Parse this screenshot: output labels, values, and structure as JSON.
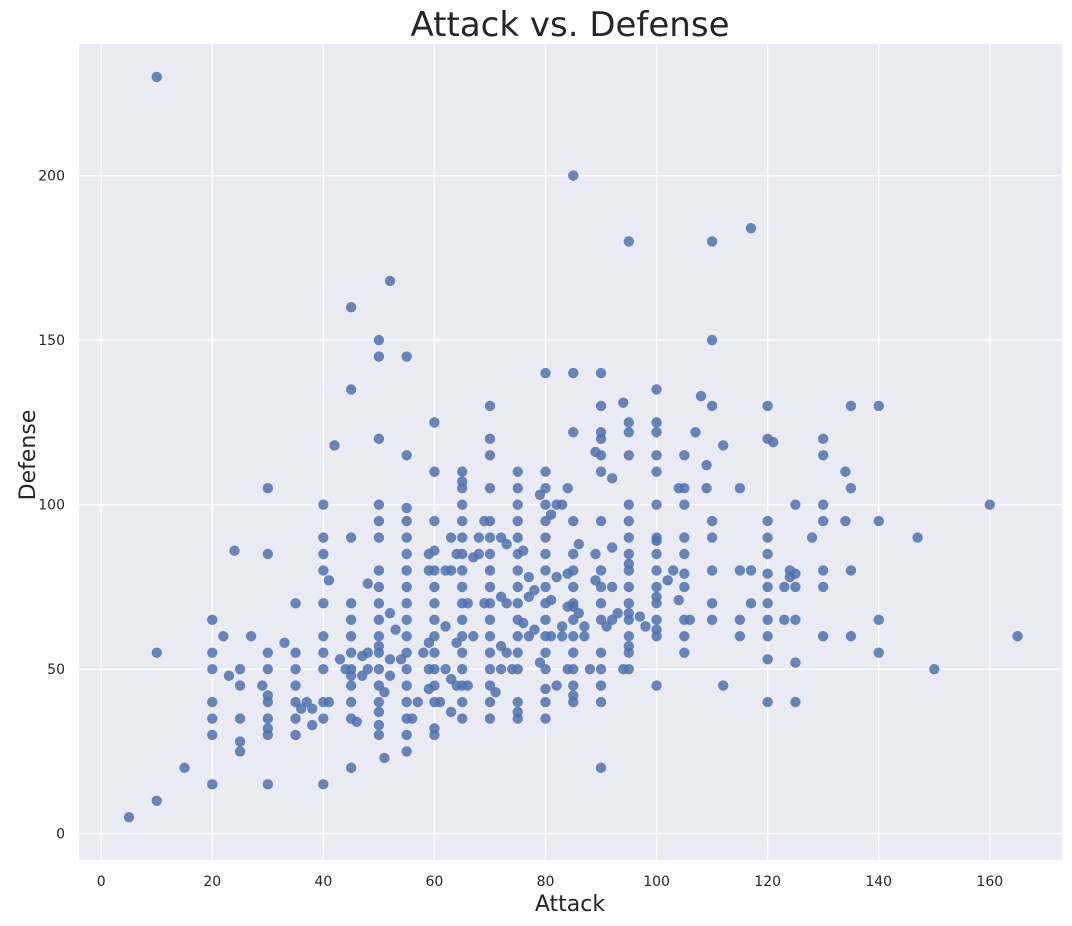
{
  "chart_data": {
    "type": "scatter",
    "title": "Attack vs. Defense",
    "xlabel": "Attack",
    "ylabel": "Defense",
    "xlim": [
      -4,
      173
    ],
    "ylim": [
      -8,
      240
    ],
    "xticks": [
      0,
      20,
      40,
      60,
      80,
      100,
      120,
      140,
      160
    ],
    "yticks": [
      0,
      50,
      100,
      150,
      200
    ],
    "grid": true,
    "point_color": "#4c72b0",
    "background_color": "#eaeaf2",
    "points": [
      [
        5,
        5
      ],
      [
        10,
        10
      ],
      [
        10,
        55
      ],
      [
        10,
        230
      ],
      [
        15,
        20
      ],
      [
        20,
        15
      ],
      [
        20,
        30
      ],
      [
        20,
        35
      ],
      [
        20,
        40
      ],
      [
        20,
        50
      ],
      [
        20,
        55
      ],
      [
        20,
        65
      ],
      [
        22,
        60
      ],
      [
        23,
        48
      ],
      [
        24,
        86
      ],
      [
        25,
        25
      ],
      [
        25,
        28
      ],
      [
        25,
        35
      ],
      [
        25,
        45
      ],
      [
        25,
        50
      ],
      [
        27,
        60
      ],
      [
        29,
        45
      ],
      [
        30,
        15
      ],
      [
        30,
        30
      ],
      [
        30,
        32
      ],
      [
        30,
        35
      ],
      [
        30,
        40
      ],
      [
        30,
        42
      ],
      [
        30,
        50
      ],
      [
        30,
        55
      ],
      [
        30,
        85
      ],
      [
        30,
        105
      ],
      [
        33,
        58
      ],
      [
        35,
        30
      ],
      [
        35,
        35
      ],
      [
        35,
        40
      ],
      [
        35,
        45
      ],
      [
        35,
        50
      ],
      [
        35,
        55
      ],
      [
        35,
        70
      ],
      [
        36,
        38
      ],
      [
        37,
        40
      ],
      [
        38,
        33
      ],
      [
        38,
        38
      ],
      [
        40,
        15
      ],
      [
        40,
        35
      ],
      [
        40,
        40
      ],
      [
        40,
        50
      ],
      [
        40,
        55
      ],
      [
        40,
        60
      ],
      [
        40,
        70
      ],
      [
        40,
        80
      ],
      [
        40,
        85
      ],
      [
        40,
        90
      ],
      [
        40,
        100
      ],
      [
        41,
        40
      ],
      [
        41,
        77
      ],
      [
        42,
        118
      ],
      [
        43,
        53
      ],
      [
        44,
        50
      ],
      [
        45,
        20
      ],
      [
        45,
        35
      ],
      [
        45,
        40
      ],
      [
        45,
        45
      ],
      [
        45,
        48
      ],
      [
        45,
        50
      ],
      [
        45,
        55
      ],
      [
        45,
        60
      ],
      [
        45,
        65
      ],
      [
        45,
        70
      ],
      [
        45,
        90
      ],
      [
        45,
        135
      ],
      [
        45,
        160
      ],
      [
        46,
        34
      ],
      [
        47,
        48
      ],
      [
        47,
        54
      ],
      [
        48,
        50
      ],
      [
        48,
        55
      ],
      [
        48,
        76
      ],
      [
        50,
        30
      ],
      [
        50,
        33
      ],
      [
        50,
        37
      ],
      [
        50,
        40
      ],
      [
        50,
        45
      ],
      [
        50,
        50
      ],
      [
        50,
        55
      ],
      [
        50,
        57
      ],
      [
        50,
        60
      ],
      [
        50,
        65
      ],
      [
        50,
        70
      ],
      [
        50,
        75
      ],
      [
        50,
        80
      ],
      [
        50,
        90
      ],
      [
        50,
        95
      ],
      [
        50,
        100
      ],
      [
        50,
        120
      ],
      [
        50,
        145
      ],
      [
        50,
        150
      ],
      [
        51,
        23
      ],
      [
        51,
        43
      ],
      [
        52,
        48
      ],
      [
        52,
        53
      ],
      [
        52,
        67
      ],
      [
        52,
        168
      ],
      [
        53,
        62
      ],
      [
        54,
        53
      ],
      [
        55,
        25
      ],
      [
        55,
        30
      ],
      [
        55,
        35
      ],
      [
        55,
        40
      ],
      [
        55,
        45
      ],
      [
        55,
        50
      ],
      [
        55,
        55
      ],
      [
        55,
        60
      ],
      [
        55,
        65
      ],
      [
        55,
        70
      ],
      [
        55,
        75
      ],
      [
        55,
        80
      ],
      [
        55,
        85
      ],
      [
        55,
        90
      ],
      [
        55,
        95
      ],
      [
        55,
        99
      ],
      [
        55,
        115
      ],
      [
        55,
        145
      ],
      [
        56,
        35
      ],
      [
        57,
        40
      ],
      [
        58,
        55
      ],
      [
        59,
        44
      ],
      [
        59,
        50
      ],
      [
        59,
        58
      ],
      [
        59,
        80
      ],
      [
        59,
        85
      ],
      [
        60,
        30
      ],
      [
        60,
        32
      ],
      [
        60,
        40
      ],
      [
        60,
        45
      ],
      [
        60,
        50
      ],
      [
        60,
        55
      ],
      [
        60,
        60
      ],
      [
        60,
        65
      ],
      [
        60,
        70
      ],
      [
        60,
        75
      ],
      [
        60,
        80
      ],
      [
        60,
        86
      ],
      [
        60,
        95
      ],
      [
        60,
        110
      ],
      [
        60,
        125
      ],
      [
        61,
        40
      ],
      [
        62,
        50
      ],
      [
        62,
        63
      ],
      [
        62,
        80
      ],
      [
        63,
        37
      ],
      [
        63,
        47
      ],
      [
        63,
        80
      ],
      [
        63,
        90
      ],
      [
        64,
        45
      ],
      [
        64,
        58
      ],
      [
        64,
        85
      ],
      [
        65,
        35
      ],
      [
        65,
        40
      ],
      [
        65,
        45
      ],
      [
        65,
        50
      ],
      [
        65,
        55
      ],
      [
        65,
        60
      ],
      [
        65,
        65
      ],
      [
        65,
        70
      ],
      [
        65,
        75
      ],
      [
        65,
        80
      ],
      [
        65,
        85
      ],
      [
        65,
        90
      ],
      [
        65,
        95
      ],
      [
        65,
        100
      ],
      [
        65,
        105
      ],
      [
        65,
        107
      ],
      [
        65,
        110
      ],
      [
        66,
        45
      ],
      [
        66,
        70
      ],
      [
        67,
        60
      ],
      [
        67,
        84
      ],
      [
        68,
        85
      ],
      [
        68,
        90
      ],
      [
        69,
        70
      ],
      [
        69,
        95
      ],
      [
        70,
        35
      ],
      [
        70,
        40
      ],
      [
        70,
        45
      ],
      [
        70,
        50
      ],
      [
        70,
        55
      ],
      [
        70,
        60
      ],
      [
        70,
        65
      ],
      [
        70,
        70
      ],
      [
        70,
        75
      ],
      [
        70,
        80
      ],
      [
        70,
        85
      ],
      [
        70,
        90
      ],
      [
        70,
        95
      ],
      [
        70,
        105
      ],
      [
        70,
        115
      ],
      [
        70,
        120
      ],
      [
        70,
        130
      ],
      [
        71,
        43
      ],
      [
        72,
        50
      ],
      [
        72,
        57
      ],
      [
        72,
        72
      ],
      [
        72,
        90
      ],
      [
        73,
        55
      ],
      [
        73,
        88
      ],
      [
        73,
        70
      ],
      [
        74,
        50
      ],
      [
        75,
        35
      ],
      [
        75,
        37
      ],
      [
        75,
        40
      ],
      [
        75,
        50
      ],
      [
        75,
        55
      ],
      [
        75,
        60
      ],
      [
        75,
        65
      ],
      [
        75,
        70
      ],
      [
        75,
        75
      ],
      [
        75,
        80
      ],
      [
        75,
        85
      ],
      [
        75,
        90
      ],
      [
        75,
        95
      ],
      [
        75,
        100
      ],
      [
        75,
        105
      ],
      [
        75,
        110
      ],
      [
        76,
        64
      ],
      [
        76,
        86
      ],
      [
        77,
        60
      ],
      [
        77,
        72
      ],
      [
        77,
        78
      ],
      [
        78,
        62
      ],
      [
        78,
        74
      ],
      [
        79,
        52
      ],
      [
        79,
        103
      ],
      [
        80,
        35
      ],
      [
        80,
        40
      ],
      [
        80,
        44
      ],
      [
        80,
        50
      ],
      [
        80,
        55
      ],
      [
        80,
        60
      ],
      [
        80,
        65
      ],
      [
        80,
        70
      ],
      [
        80,
        75
      ],
      [
        80,
        80
      ],
      [
        80,
        85
      ],
      [
        80,
        90
      ],
      [
        80,
        95
      ],
      [
        80,
        100
      ],
      [
        80,
        105
      ],
      [
        80,
        110
      ],
      [
        80,
        140
      ],
      [
        81,
        60
      ],
      [
        81,
        71
      ],
      [
        81,
        97
      ],
      [
        82,
        45
      ],
      [
        82,
        78
      ],
      [
        82,
        100
      ],
      [
        83,
        60
      ],
      [
        83,
        63
      ],
      [
        83,
        100
      ],
      [
        84,
        50
      ],
      [
        84,
        69
      ],
      [
        84,
        79
      ],
      [
        84,
        105
      ],
      [
        85,
        40
      ],
      [
        85,
        42
      ],
      [
        85,
        45
      ],
      [
        85,
        50
      ],
      [
        85,
        55
      ],
      [
        85,
        60
      ],
      [
        85,
        65
      ],
      [
        85,
        69
      ],
      [
        85,
        70
      ],
      [
        85,
        75
      ],
      [
        85,
        80
      ],
      [
        85,
        85
      ],
      [
        85,
        95
      ],
      [
        85,
        122
      ],
      [
        85,
        140
      ],
      [
        85,
        200
      ],
      [
        86,
        67
      ],
      [
        86,
        88
      ],
      [
        87,
        60
      ],
      [
        87,
        63
      ],
      [
        88,
        50
      ],
      [
        89,
        77
      ],
      [
        89,
        85
      ],
      [
        89,
        116
      ],
      [
        90,
        20
      ],
      [
        90,
        40
      ],
      [
        90,
        45
      ],
      [
        90,
        50
      ],
      [
        90,
        55
      ],
      [
        90,
        65
      ],
      [
        90,
        70
      ],
      [
        90,
        75
      ],
      [
        90,
        80
      ],
      [
        90,
        95
      ],
      [
        90,
        110
      ],
      [
        90,
        115
      ],
      [
        90,
        120
      ],
      [
        90,
        122
      ],
      [
        90,
        130
      ],
      [
        90,
        140
      ],
      [
        91,
        63
      ],
      [
        92,
        87
      ],
      [
        92,
        65
      ],
      [
        92,
        75
      ],
      [
        92,
        108
      ],
      [
        93,
        67
      ],
      [
        94,
        50
      ],
      [
        94,
        131
      ],
      [
        95,
        50
      ],
      [
        95,
        55
      ],
      [
        95,
        57
      ],
      [
        95,
        60
      ],
      [
        95,
        65
      ],
      [
        95,
        67
      ],
      [
        95,
        70
      ],
      [
        95,
        75
      ],
      [
        95,
        80
      ],
      [
        95,
        82
      ],
      [
        95,
        85
      ],
      [
        95,
        90
      ],
      [
        95,
        95
      ],
      [
        95,
        100
      ],
      [
        95,
        115
      ],
      [
        95,
        122
      ],
      [
        95,
        125
      ],
      [
        95,
        180
      ],
      [
        97,
        66
      ],
      [
        98,
        63
      ],
      [
        100,
        45
      ],
      [
        100,
        60
      ],
      [
        100,
        62
      ],
      [
        100,
        65
      ],
      [
        100,
        70
      ],
      [
        100,
        72
      ],
      [
        100,
        75
      ],
      [
        100,
        80
      ],
      [
        100,
        85
      ],
      [
        100,
        89
      ],
      [
        100,
        90
      ],
      [
        100,
        100
      ],
      [
        100,
        110
      ],
      [
        100,
        115
      ],
      [
        100,
        122
      ],
      [
        100,
        125
      ],
      [
        100,
        135
      ],
      [
        102,
        77
      ],
      [
        103,
        80
      ],
      [
        104,
        71
      ],
      [
        104,
        105
      ],
      [
        105,
        55
      ],
      [
        105,
        60
      ],
      [
        105,
        65
      ],
      [
        105,
        75
      ],
      [
        105,
        79
      ],
      [
        105,
        85
      ],
      [
        105,
        90
      ],
      [
        105,
        100
      ],
      [
        105,
        105
      ],
      [
        105,
        115
      ],
      [
        106,
        65
      ],
      [
        107,
        122
      ],
      [
        108,
        133
      ],
      [
        109,
        105
      ],
      [
        109,
        112
      ],
      [
        110,
        65
      ],
      [
        110,
        70
      ],
      [
        110,
        80
      ],
      [
        110,
        90
      ],
      [
        110,
        95
      ],
      [
        110,
        130
      ],
      [
        110,
        150
      ],
      [
        110,
        180
      ],
      [
        112,
        45
      ],
      [
        112,
        118
      ],
      [
        115,
        60
      ],
      [
        115,
        65
      ],
      [
        115,
        80
      ],
      [
        115,
        105
      ],
      [
        117,
        70
      ],
      [
        117,
        80
      ],
      [
        117,
        184
      ],
      [
        120,
        40
      ],
      [
        120,
        53
      ],
      [
        120,
        60
      ],
      [
        120,
        65
      ],
      [
        120,
        70
      ],
      [
        120,
        75
      ],
      [
        120,
        79
      ],
      [
        120,
        85
      ],
      [
        120,
        90
      ],
      [
        120,
        95
      ],
      [
        120,
        120
      ],
      [
        120,
        130
      ],
      [
        121,
        119
      ],
      [
        123,
        65
      ],
      [
        123,
        75
      ],
      [
        124,
        78
      ],
      [
        124,
        80
      ],
      [
        125,
        40
      ],
      [
        125,
        52
      ],
      [
        125,
        65
      ],
      [
        125,
        75
      ],
      [
        125,
        79
      ],
      [
        125,
        100
      ],
      [
        128,
        90
      ],
      [
        130,
        60
      ],
      [
        130,
        75
      ],
      [
        130,
        80
      ],
      [
        130,
        95
      ],
      [
        130,
        100
      ],
      [
        130,
        115
      ],
      [
        130,
        120
      ],
      [
        134,
        95
      ],
      [
        134,
        110
      ],
      [
        135,
        60
      ],
      [
        135,
        80
      ],
      [
        135,
        105
      ],
      [
        135,
        130
      ],
      [
        140,
        55
      ],
      [
        140,
        65
      ],
      [
        140,
        95
      ],
      [
        140,
        130
      ],
      [
        147,
        90
      ],
      [
        150,
        50
      ],
      [
        160,
        100
      ],
      [
        165,
        60
      ]
    ]
  }
}
